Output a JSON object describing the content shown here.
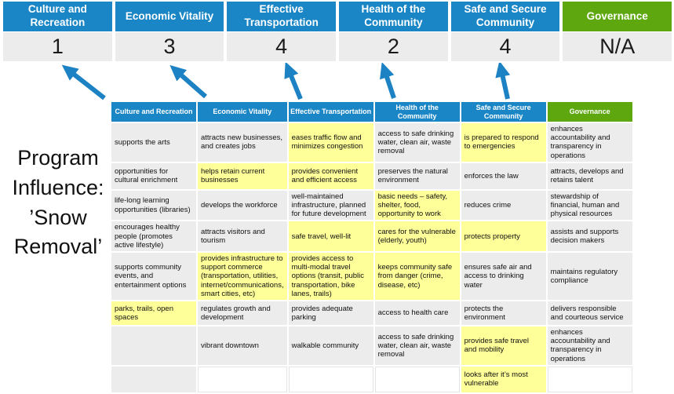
{
  "program_title": "Program Influence: ’Snow Removal’",
  "colors": {
    "header_blue": "#1b86c6",
    "header_green": "#5ea70f",
    "score_gray": "#ececec",
    "highlight_yellow": "#ffff99",
    "arrow_blue": "#1d82c4"
  },
  "summary": {
    "categories": [
      {
        "label": "Culture and Recreation",
        "score": "1",
        "color": "blue"
      },
      {
        "label": "Economic Vitality",
        "score": "3",
        "color": "blue"
      },
      {
        "label": "Effective Transportation",
        "score": "4",
        "color": "blue"
      },
      {
        "label": "Health of the Community",
        "score": "2",
        "color": "blue"
      },
      {
        "label": "Safe and Secure Community",
        "score": "4",
        "color": "blue"
      },
      {
        "label": "Governance",
        "score": "N/A",
        "color": "green"
      }
    ]
  },
  "matrix": {
    "headers": [
      {
        "label": "Culture and Recreation",
        "color": "blue"
      },
      {
        "label": "Economic Vitality",
        "color": "blue"
      },
      {
        "label": "Effective Transportation",
        "color": "blue"
      },
      {
        "label": "Health of the Community",
        "color": "blue"
      },
      {
        "label": "Safe and Secure Community",
        "color": "blue"
      },
      {
        "label": "Governance",
        "color": "green"
      }
    ],
    "rows": [
      [
        {
          "text": "supports the arts",
          "bg": "gray"
        },
        {
          "text": "attracts new businesses, and creates jobs",
          "bg": "gray"
        },
        {
          "text": "eases traffic flow and minimizes congestion",
          "bg": "yellow"
        },
        {
          "text": "access to safe drinking water, clean air, waste removal",
          "bg": "gray"
        },
        {
          "text": "is prepared to respond to emergencies",
          "bg": "yellow"
        },
        {
          "text": "enhances accountability and transparency in operations",
          "bg": "gray"
        }
      ],
      [
        {
          "text": "opportunities for cultural enrichment",
          "bg": "gray"
        },
        {
          "text": "helps retain current businesses",
          "bg": "yellow"
        },
        {
          "text": "provides convenient and efficient access",
          "bg": "yellow"
        },
        {
          "text": "preserves the natural environment",
          "bg": "gray"
        },
        {
          "text": "enforces the law",
          "bg": "gray"
        },
        {
          "text": "attracts, develops and retains talent",
          "bg": "gray"
        }
      ],
      [
        {
          "text": "life-long learning opportunities (libraries)",
          "bg": "gray"
        },
        {
          "text": "develops the workforce",
          "bg": "gray"
        },
        {
          "text": "well-maintained infrastructure, planned for future development",
          "bg": "gray"
        },
        {
          "text": "basic needs – safety, shelter, food, opportunity to work",
          "bg": "yellow"
        },
        {
          "text": "reduces crime",
          "bg": "gray"
        },
        {
          "text": "stewardship of financial, human and physical resources",
          "bg": "gray"
        }
      ],
      [
        {
          "text": "encourages healthy people (promotes active lifestyle)",
          "bg": "gray"
        },
        {
          "text": "attracts visitors and tourism",
          "bg": "gray"
        },
        {
          "text": "safe travel, well-lit",
          "bg": "yellow"
        },
        {
          "text": "cares for the vulnerable (elderly, youth)",
          "bg": "yellow"
        },
        {
          "text": "protects property",
          "bg": "yellow"
        },
        {
          "text": "assists and supports decision makers",
          "bg": "gray"
        }
      ],
      [
        {
          "text": "supports community events, and entertainment options",
          "bg": "gray"
        },
        {
          "text": "provides infrastructure to support commerce (transportation, utilities, internet/communications, smart cities, etc)",
          "bg": "yellow"
        },
        {
          "text": "provides access to multi-modal travel options (transit, public transportation, bike lanes, trails)",
          "bg": "yellow"
        },
        {
          "text": "keeps community safe from danger (crime, disease, etc)",
          "bg": "yellow"
        },
        {
          "text": "ensures safe air and access to drinking water",
          "bg": "gray"
        },
        {
          "text": "maintains regulatory compliance",
          "bg": "gray"
        }
      ],
      [
        {
          "text": "parks, trails, open spaces",
          "bg": "yellow"
        },
        {
          "text": "regulates growth and development",
          "bg": "gray"
        },
        {
          "text": "provides adequate parking",
          "bg": "gray"
        },
        {
          "text": "access to health care",
          "bg": "gray"
        },
        {
          "text": "protects the environment",
          "bg": "gray"
        },
        {
          "text": "delivers responsible and courteous service",
          "bg": "gray"
        }
      ],
      [
        {
          "text": "",
          "bg": "gray"
        },
        {
          "text": "vibrant downtown",
          "bg": "gray"
        },
        {
          "text": "walkable community",
          "bg": "gray"
        },
        {
          "text": "access to safe drinking water, clean air, waste removal",
          "bg": "gray"
        },
        {
          "text": "provides safe travel and mobility",
          "bg": "yellow"
        },
        {
          "text": "enhances accountability and transparency in operations",
          "bg": "gray"
        }
      ],
      [
        {
          "text": "",
          "bg": "gray"
        },
        {
          "text": "",
          "bg": "white"
        },
        {
          "text": "",
          "bg": "white"
        },
        {
          "text": "",
          "bg": "white"
        },
        {
          "text": "looks after it’s most vulnerable",
          "bg": "yellow"
        },
        {
          "text": "",
          "bg": "white"
        }
      ]
    ]
  }
}
